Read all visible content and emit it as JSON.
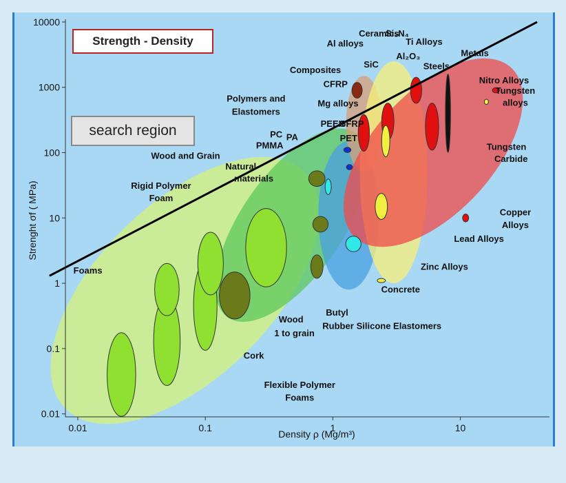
{
  "title": "Strength - Density",
  "search_label": "search region",
  "chart_data": {
    "type": "scatter",
    "xlabel": "Density ρ (Mg/m³)",
    "ylabel": "Strenght σf ( MPa)",
    "xscale": "log",
    "yscale": "log",
    "xlim": [
      0.008,
      50
    ],
    "ylim": [
      0.009,
      11000
    ],
    "x_ticks": [
      "0.01",
      "0.1",
      "1",
      "10"
    ],
    "y_ticks": [
      "10000",
      "1000",
      "100",
      "10",
      "1",
      "0.1",
      "0.01"
    ],
    "x_tick_values": [
      0.01,
      0.1,
      1,
      10
    ],
    "y_tick_values": [
      10000,
      1000,
      100,
      10,
      1,
      0.1,
      0.01
    ],
    "grid": false,
    "guide_line": {
      "x": [
        0.006,
        40
      ],
      "y": [
        1.3,
        10000
      ]
    },
    "families": [
      {
        "name": "Foams",
        "x": [
          0.008,
          0.6
        ],
        "y": [
          0.012,
          50
        ],
        "color": "#d6f27a"
      },
      {
        "name": "Natural materials",
        "x": [
          0.15,
          1.5
        ],
        "y": [
          0.3,
          200
        ],
        "color": "#5cc85c"
      },
      {
        "name": "Polymers and Elastomers",
        "x": [
          0.85,
          2.1
        ],
        "y": [
          0.8,
          150
        ],
        "color": "#4a9fe0"
      },
      {
        "name": "Composites",
        "x": [
          1.4,
          2.2
        ],
        "y": [
          50,
          1500
        ],
        "color": "#d8a07a"
      },
      {
        "name": "Ceramics",
        "x": [
          1.8,
          5
        ],
        "y": [
          1,
          2500
        ],
        "color": "#f8f07a"
      },
      {
        "name": "Metals",
        "x": [
          1.5,
          25
        ],
        "y": [
          5,
          2000
        ],
        "color": "#f04a4a"
      }
    ],
    "bubbles": [
      {
        "label": "Foams",
        "x": 0.022,
        "y": 0.04,
        "rx": 0.028,
        "ry": 0.16,
        "color": "#8fe030"
      },
      {
        "label": "Foams",
        "x": 0.05,
        "y": 0.13,
        "rx": 0.026,
        "ry": 0.17,
        "color": "#8fe030"
      },
      {
        "label": "Foams",
        "x": 0.05,
        "y": 0.8,
        "rx": 0.024,
        "ry": 0.1,
        "color": "#8fe030"
      },
      {
        "label": "Foams",
        "x": 0.1,
        "y": 0.45,
        "rx": 0.023,
        "ry": 0.17,
        "color": "#8fe030"
      },
      {
        "label": "Foams",
        "x": 0.11,
        "y": 2,
        "rx": 0.025,
        "ry": 0.12,
        "color": "#8fe030"
      },
      {
        "label": "Foams",
        "x": 0.3,
        "y": 3.5,
        "rx": 0.04,
        "ry": 0.15,
        "color": "#8fe030"
      },
      {
        "label": "Cork",
        "x": 0.17,
        "y": 0.65,
        "rx": 0.03,
        "ry": 0.09,
        "color": "#6b7a1a"
      },
      {
        "label": "Wood and Grain",
        "x": 0.75,
        "y": 40,
        "rx": 0.016,
        "ry": 0.03,
        "color": "#6b7a1a"
      },
      {
        "label": "Wood",
        "x": 0.8,
        "y": 8,
        "rx": 0.015,
        "ry": 0.03,
        "color": "#6b7a1a"
      },
      {
        "label": "Wood",
        "x": 0.75,
        "y": 1.8,
        "rx": 0.012,
        "ry": 0.045,
        "color": "#6b7a1a"
      },
      {
        "label": "Silicone Elastomers",
        "x": 1.45,
        "y": 4,
        "rx": 0.015,
        "ry": 0.03,
        "color": "#30e8e8"
      },
      {
        "label": "CFRP",
        "x": 1.55,
        "y": 900,
        "rx": 0.01,
        "ry": 0.03,
        "color": "#8a2a10"
      },
      {
        "label": "PEEK",
        "x": 1.3,
        "y": 110,
        "rx": 0.007,
        "ry": 0.01,
        "color": "#1030d0"
      },
      {
        "label": "PET",
        "x": 1.35,
        "y": 60,
        "rx": 0.006,
        "ry": 0.01,
        "color": "#1030d0"
      },
      {
        "label": "Mg alloys",
        "x": 1.75,
        "y": 200,
        "rx": 0.011,
        "ry": 0.07,
        "color": "#e01010"
      },
      {
        "label": "Al alloys",
        "x": 2.7,
        "y": 300,
        "rx": 0.012,
        "ry": 0.07,
        "color": "#e01010"
      },
      {
        "label": "Ti Alloys",
        "x": 4.5,
        "y": 900,
        "rx": 0.011,
        "ry": 0.05,
        "color": "#e01010"
      },
      {
        "label": "Zinc Alloys",
        "x": 6,
        "y": 250,
        "rx": 0.013,
        "ry": 0.09,
        "color": "#e01010"
      },
      {
        "label": "Steels",
        "x": 8,
        "y": 400,
        "rx": 0.005,
        "ry": 0.15,
        "color": "#111111"
      },
      {
        "label": "Tungsten alloys",
        "x": 19,
        "y": 900,
        "rx": 0.007,
        "ry": 0.01,
        "color": "#e01010"
      },
      {
        "label": "Tungsten Carbide",
        "x": 16,
        "y": 600,
        "rx": 0.004,
        "ry": 0.01,
        "color": "#f0f050"
      },
      {
        "label": "Lead Alloys",
        "x": 11,
        "y": 10,
        "rx": 0.006,
        "ry": 0.015,
        "color": "#e01010"
      },
      {
        "label": "Ceramics",
        "x": 2.6,
        "y": 150,
        "rx": 0.008,
        "ry": 0.06,
        "color": "#f0f040"
      },
      {
        "label": "Concrete",
        "x": 2.4,
        "y": 1.1,
        "rx": 0.008,
        "ry": 0.004,
        "color": "#f0f040"
      },
      {
        "label": "Butyl Rubber",
        "x": 0.92,
        "y": 30,
        "rx": 0.006,
        "ry": 0.03,
        "color": "#30e8e8"
      },
      {
        "label": "Ceramics",
        "x": 2.4,
        "y": 15,
        "rx": 0.012,
        "ry": 0.05,
        "color": "#f0f040"
      }
    ],
    "annotations": [
      {
        "text": "Ceramics",
        "x": 2.3,
        "y": 6000
      },
      {
        "text": "Si₃N₄",
        "x": 3.2,
        "y": 6000
      },
      {
        "text": "Ti Alloys",
        "x": 5.2,
        "y": 4500
      },
      {
        "text": "Al alloys",
        "x": 1.25,
        "y": 4200
      },
      {
        "text": "Al₂O₃",
        "x": 3.9,
        "y": 2700
      },
      {
        "text": "Metals",
        "x": 13,
        "y": 3000
      },
      {
        "text": "Composites",
        "x": 0.73,
        "y": 1650
      },
      {
        "text": "SiC",
        "x": 2.0,
        "y": 2000
      },
      {
        "text": "Steels",
        "x": 6.5,
        "y": 1900
      },
      {
        "text": "Nitro Alloys",
        "x": 22,
        "y": 1150
      },
      {
        "text": "CFRP",
        "x": 1.05,
        "y": 1000
      },
      {
        "text": "Tungsten",
        "x": 27,
        "y": 800
      },
      {
        "text": "alloys",
        "x": 27,
        "y": 520
      },
      {
        "text": "Polymers and",
        "x": 0.25,
        "y": 600
      },
      {
        "text": "Elastomers",
        "x": 0.25,
        "y": 380
      },
      {
        "text": "Mg alloys",
        "x": 1.1,
        "y": 510
      },
      {
        "text": "PEEK",
        "x": 1.0,
        "y": 250
      },
      {
        "text": "GFRP",
        "x": 1.4,
        "y": 250
      },
      {
        "text": "PC",
        "x": 0.36,
        "y": 170
      },
      {
        "text": "PA",
        "x": 0.48,
        "y": 155
      },
      {
        "text": "PET",
        "x": 1.33,
        "y": 150
      },
      {
        "text": "PMMA",
        "x": 0.32,
        "y": 115
      },
      {
        "text": "Wood and Grain",
        "x": 0.07,
        "y": 80
      },
      {
        "text": "Natural",
        "x": 0.19,
        "y": 55
      },
      {
        "text": "materials",
        "x": 0.24,
        "y": 36
      },
      {
        "text": "Tungsten",
        "x": 23,
        "y": 110
      },
      {
        "text": "Carbide",
        "x": 25,
        "y": 72
      },
      {
        "text": "Rigid Polymer",
        "x": 0.045,
        "y": 28
      },
      {
        "text": "Foam",
        "x": 0.045,
        "y": 18
      },
      {
        "text": "Copper",
        "x": 27,
        "y": 11
      },
      {
        "text": "Alloys",
        "x": 27,
        "y": 7
      },
      {
        "text": "Lead Alloys",
        "x": 14,
        "y": 4.3
      },
      {
        "text": "Zinc Alloys",
        "x": 7.5,
        "y": 1.6
      },
      {
        "text": "Foams",
        "x": 0.012,
        "y": 1.4
      },
      {
        "text": "Concrete",
        "x": 3.4,
        "y": 0.72
      },
      {
        "text": "Butyl",
        "x": 1.08,
        "y": 0.32
      },
      {
        "text": "Rubber",
        "x": 1.1,
        "y": 0.2
      },
      {
        "text": "Silicone Elastomers",
        "x": 3.3,
        "y": 0.2
      },
      {
        "text": "Wood",
        "x": 0.47,
        "y": 0.25
      },
      {
        "text": "1 to grain",
        "x": 0.5,
        "y": 0.155
      },
      {
        "text": "Cork",
        "x": 0.24,
        "y": 0.07
      },
      {
        "text": "Flexible Polymer",
        "x": 0.55,
        "y": 0.025
      },
      {
        "text": "Foams",
        "x": 0.55,
        "y": 0.016
      }
    ]
  }
}
